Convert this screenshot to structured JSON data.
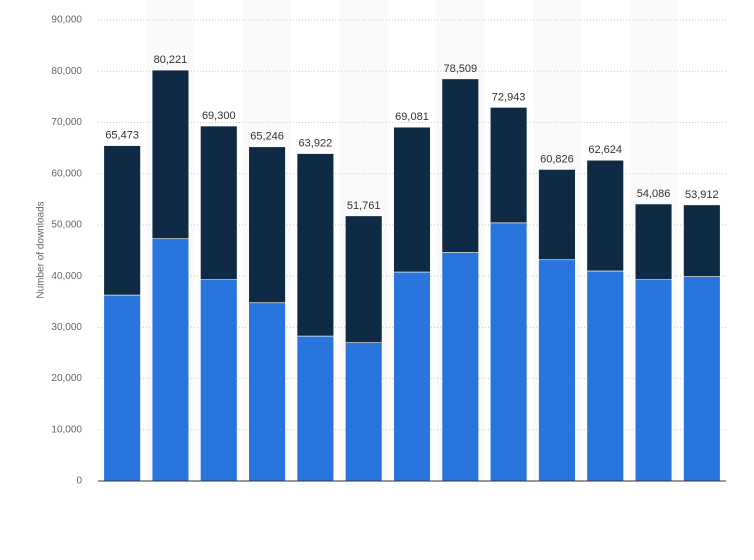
{
  "chart_data": {
    "type": "stacked_bar",
    "y_label": "Number of downloads",
    "categories": [
      null,
      null,
      null,
      null,
      null,
      null,
      null,
      null,
      null,
      null,
      null,
      null,
      null
    ],
    "series": [
      {
        "color": "#2876dd",
        "values": [
          36300,
          47300,
          39300,
          34800,
          28300,
          27000,
          40800,
          44600,
          50400,
          43200,
          41000,
          39300,
          39900
        ]
      },
      {
        "color": "#0f2a44",
        "values": [
          29173,
          32921,
          30000,
          30446,
          35622,
          24761,
          28281,
          33909,
          22543,
          17626,
          21624,
          14786,
          14012
        ]
      }
    ],
    "totals": [
      65473,
      80221,
      69300,
      65246,
      63922,
      51761,
      69081,
      78509,
      72943,
      60826,
      62624,
      54086,
      53912
    ],
    "total_labels": [
      "65,473",
      "80,221",
      "69,300",
      "65,246",
      "63,922",
      "51,761",
      "69,081",
      "78,509",
      "72,943",
      "60,826",
      "62,624",
      "54,086",
      "53,912"
    ],
    "ylim": [
      0,
      90000
    ],
    "yticks": [
      0,
      {
        "value": 10000,
        "label": "10,000"
      },
      {
        "value": 20000,
        "label": "20,000"
      },
      {
        "value": 30000,
        "label": "30,000"
      },
      {
        "value": 40000,
        "label": "40,000"
      },
      {
        "value": 50000,
        "label": "50,000"
      },
      {
        "value": 60000,
        "label": "60,000"
      },
      {
        "value": 70000,
        "label": "70,000"
      },
      {
        "value": 80000,
        "label": "80,000"
      },
      {
        "value": 90000,
        "label": "90,000"
      }
    ],
    "grid": true
  }
}
